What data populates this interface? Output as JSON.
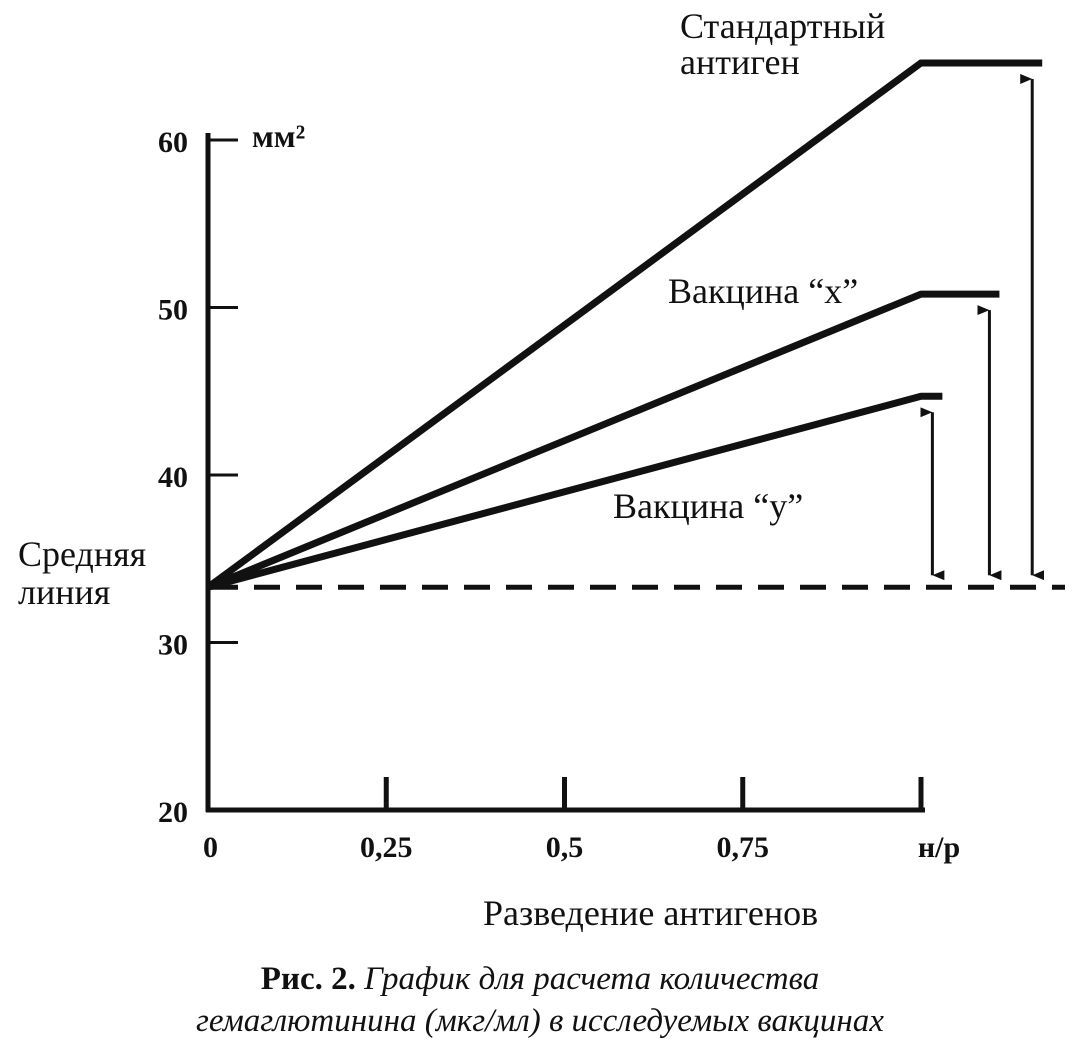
{
  "chart_data": {
    "type": "line",
    "yunit": "мм²",
    "xlabel": "Разведение антигенов",
    "y_ticks": [
      20,
      30,
      40,
      50,
      60
    ],
    "x_ticks": [
      {
        "value": 0,
        "label": "0"
      },
      {
        "value": 0.25,
        "label": "0,25"
      },
      {
        "value": 0.5,
        "label": "0,5"
      },
      {
        "value": 0.75,
        "label": "0,75"
      },
      {
        "value": 1.0,
        "label": "н/р"
      }
    ],
    "ylim": [
      20,
      64
    ],
    "baseline": {
      "label_line1": "Средняя",
      "label_line2": "линия",
      "value": 33.3
    },
    "series": [
      {
        "name_line1": "Стандартный",
        "name_line2": "антиген",
        "x": [
          0,
          1.0,
          1.17
        ],
        "y": [
          33.3,
          64.6,
          64.6
        ]
      },
      {
        "name": "Вакцина “x”",
        "x": [
          0,
          1.0,
          1.11
        ],
        "y": [
          33.3,
          50.8,
          50.8
        ]
      },
      {
        "name": "Вакцина “y”",
        "x": [
          0,
          1.0,
          1.03
        ],
        "y": [
          33.3,
          44.7,
          44.7
        ]
      }
    ],
    "caption": {
      "number": "Рис. 2.",
      "text_line1": "График для расчета количества",
      "text_line2": "гемаглютинина (мкг/мл) в исследуемых вакцинах"
    }
  }
}
